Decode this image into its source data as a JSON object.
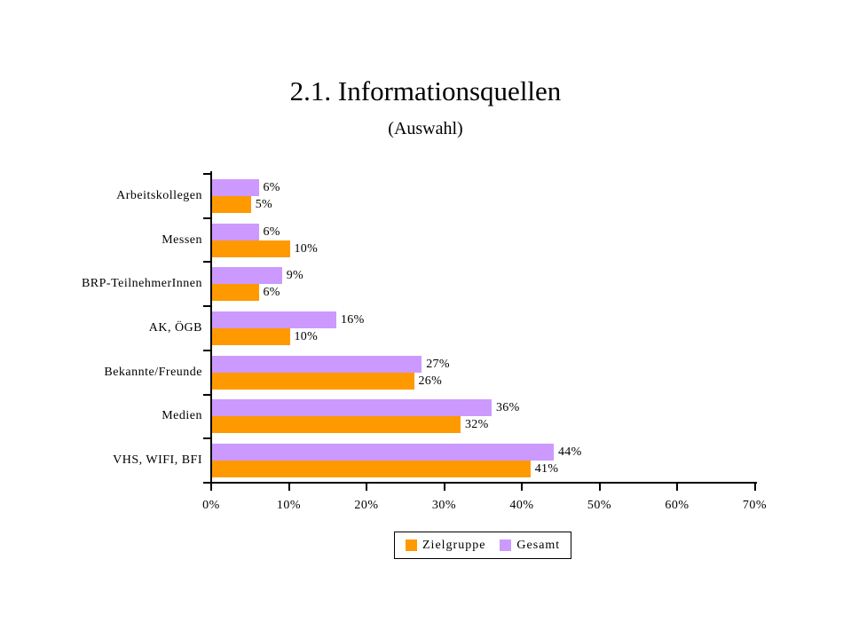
{
  "chart_data": {
    "type": "bar",
    "orientation": "horizontal",
    "title": "2.1. Informationsquellen",
    "subtitle": "(Auswahl)",
    "categories": [
      "Arbeitskollegen",
      "Messen",
      "BRP-TeilnehmerInnen",
      "AK, ÖGB",
      "Bekannte/Freunde",
      "Medien",
      "VHS, WIFI, BFI"
    ],
    "categories_order": "top-to-bottom",
    "series": [
      {
        "name": "Zielgruppe",
        "color": "#FF9900",
        "values": [
          5,
          10,
          6,
          10,
          26,
          32,
          41
        ],
        "labels": [
          "5%",
          "10%",
          "6%",
          "10%",
          "26%",
          "32%",
          "41%"
        ]
      },
      {
        "name": "Gesamt",
        "color": "#CC99FF",
        "values": [
          6,
          6,
          9,
          16,
          27,
          36,
          44
        ],
        "labels": [
          "6%",
          "6%",
          "9%",
          "16%",
          "27%",
          "36%",
          "44%"
        ]
      }
    ],
    "bar_order_top_to_bottom": [
      "Gesamt",
      "Zielgruppe"
    ],
    "xlim": [
      0,
      70
    ],
    "x_ticks": [
      "0%",
      "10%",
      "20%",
      "30%",
      "40%",
      "50%",
      "60%",
      "70%"
    ],
    "grid": false,
    "legend_position": "bottom",
    "axis_color": "#000000",
    "background_color": "#FFFFFF"
  }
}
